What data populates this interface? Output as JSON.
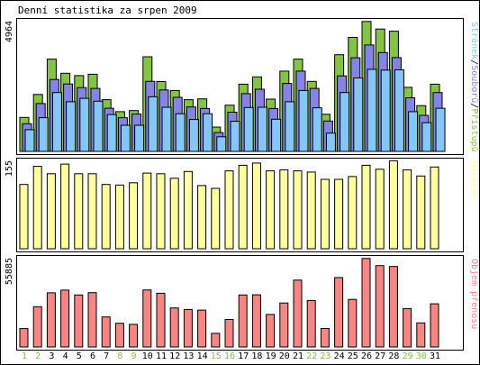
{
  "chart_data": {
    "type": "bar",
    "title": "Denní statistika za srpen 2009",
    "days": [
      "1",
      "2",
      "3",
      "4",
      "5",
      "6",
      "7",
      "8",
      "9",
      "10",
      "11",
      "12",
      "13",
      "14",
      "15",
      "16",
      "17",
      "18",
      "19",
      "20",
      "21",
      "22",
      "23",
      "24",
      "25",
      "26",
      "27",
      "28",
      "29",
      "30",
      "31"
    ],
    "weekend_days": [
      "1",
      "2",
      "8",
      "9",
      "15",
      "16",
      "22",
      "23",
      "29",
      "30"
    ],
    "colors": {
      "pristupu": "#84c442",
      "souboru": "#8484e8",
      "stranek": "#84c6f8",
      "navstev": "#ffff9c",
      "objem": "#f88484",
      "weekend_label": "#84c442",
      "weekday_label": "#000000"
    },
    "panels": [
      {
        "label_parts": [
          {
            "text": "Stránek",
            "color": "#84c6f8"
          },
          {
            "text": "/",
            "color": "#000000"
          },
          {
            "text": "Souborů",
            "color": "#8484e8"
          },
          {
            "text": "/",
            "color": "#000000"
          },
          {
            "text": "Přístupů",
            "color": "#84c442"
          }
        ],
        "max_label": "4964",
        "ylim": [
          0,
          4964
        ],
        "series": [
          {
            "name": "Přístupů",
            "key": "pristupu",
            "values": [
              1300,
              2180,
              3530,
              2990,
              2900,
              2950,
              1980,
              1520,
              1560,
              3620,
              2670,
              2330,
              1980,
              2010,
              930,
              1770,
              2570,
              2850,
              2000,
              3070,
              3530,
              2680,
              1420,
              3700,
              4360,
              4970,
              4680,
              4600,
              2450,
              1750,
              2570
            ]
          },
          {
            "name": "Souborů",
            "key": "souboru",
            "values": [
              1060,
              1830,
              2750,
              2580,
              2440,
              2410,
              1650,
              1290,
              1430,
              2680,
              2350,
              2070,
              1700,
              1640,
              720,
              1500,
              2210,
              2380,
              1640,
              2600,
              3070,
              2410,
              1160,
              2890,
              3580,
              4070,
              3780,
              3590,
              2050,
              1380,
              2250
            ]
          },
          {
            "name": "Stránek",
            "key": "stranek",
            "values": [
              830,
              1290,
              2250,
              1900,
              2030,
              1920,
              1410,
              1000,
              1000,
              2090,
              1690,
              1440,
              1220,
              1440,
              560,
              1150,
              1680,
              1690,
              1230,
              1900,
              2330,
              1670,
              700,
              2250,
              2810,
              3140,
              3110,
              3120,
              1520,
              1100,
              1650
            ]
          }
        ]
      },
      {
        "label_parts": [
          {
            "text": "Návštěv",
            "color": "#ffff9c"
          }
        ],
        "max_label": "155",
        "ylim": [
          0,
          155
        ],
        "series": [
          {
            "name": "Návštěv",
            "key": "navstev",
            "values": [
              114,
              146,
              133,
              150,
              133,
              133,
              114,
              113,
              117,
              134,
              133,
              125,
              137,
              112,
              107,
              138,
              148,
              152,
              138,
              140,
              138,
              136,
              123,
              123,
              128,
              148,
              141,
              156,
              140,
              129,
              145
            ]
          }
        ]
      },
      {
        "label_parts": [
          {
            "text": "Objem přenosu",
            "color": "#f88484"
          }
        ],
        "max_label": "55885",
        "ylim": [
          0,
          55885
        ],
        "series": [
          {
            "name": "Objem přenosu",
            "key": "objem",
            "values": [
              11620,
              25500,
              34300,
              36000,
              32900,
              34400,
              19000,
              15000,
              14300,
              36100,
              34000,
              24700,
              23700,
              23300,
              8600,
              17400,
              32900,
              33000,
              20600,
              27800,
              42300,
              29400,
              11700,
              43900,
              30100,
              56000,
              51500,
              50900,
              24300,
              15200,
              27300
            ]
          }
        ]
      }
    ]
  }
}
